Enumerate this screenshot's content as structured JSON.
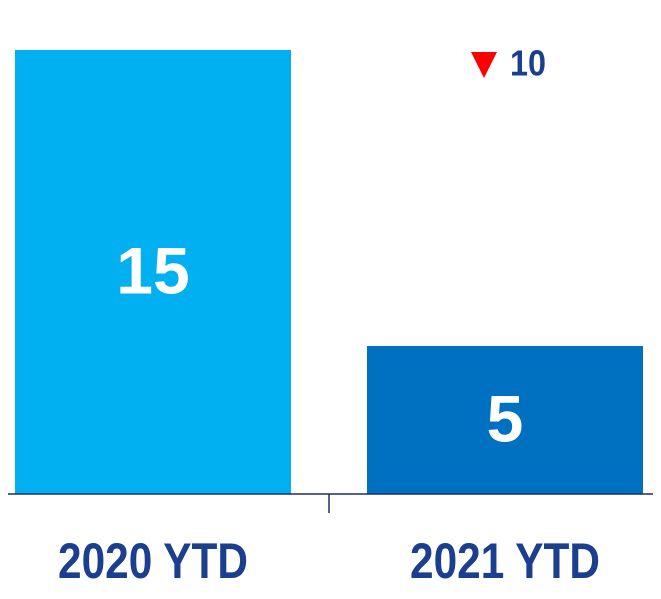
{
  "chart_data": {
    "type": "bar",
    "categories": [
      "2020 YTD",
      "2021 YTD"
    ],
    "values": [
      15,
      5
    ],
    "colors": [
      "#00b0f0",
      "#0070c0"
    ],
    "ylim": [
      0,
      15
    ],
    "annotation": "10"
  }
}
